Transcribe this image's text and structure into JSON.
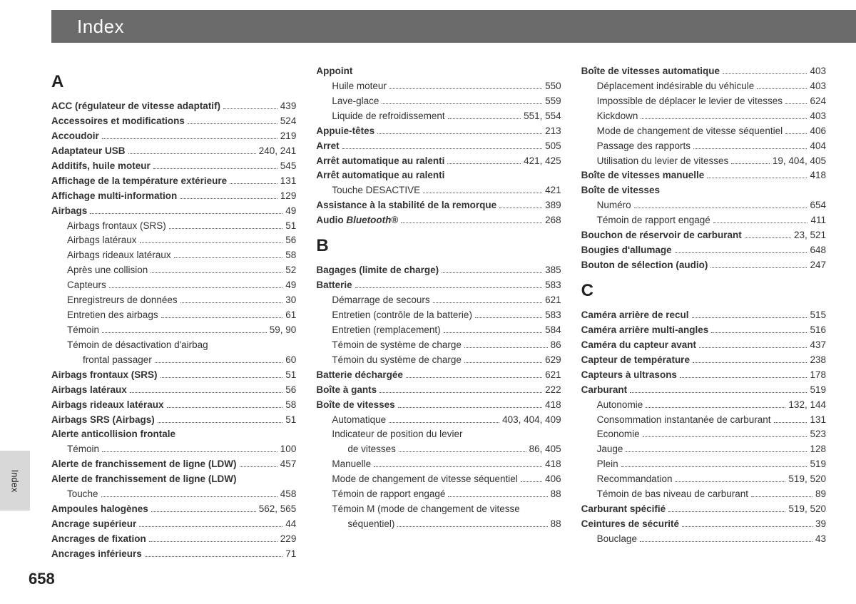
{
  "header": {
    "title": "Index"
  },
  "side_tab": "Index",
  "page_number": "658",
  "columns": [
    {
      "sections": [
        {
          "letter": "A",
          "entries": [
            {
              "lvl": 1,
              "bold": true,
              "label": "ACC (régulateur de vitesse adaptatif)",
              "pages": "439"
            },
            {
              "lvl": 1,
              "bold": true,
              "label": "Accessoires et modifications",
              "pages": "524"
            },
            {
              "lvl": 1,
              "bold": true,
              "label": "Accoudoir",
              "pages": "219"
            },
            {
              "lvl": 1,
              "bold": true,
              "label": "Adaptateur USB",
              "pages": "240, 241"
            },
            {
              "lvl": 1,
              "bold": true,
              "label": "Additifs, huile moteur",
              "pages": "545"
            },
            {
              "lvl": 1,
              "bold": true,
              "label": "Affichage de la température extérieure",
              "pages": "131"
            },
            {
              "lvl": 1,
              "bold": true,
              "label": "Affichage multi-information",
              "pages": "129"
            },
            {
              "lvl": 1,
              "bold": true,
              "label": "Airbags",
              "pages": "49"
            },
            {
              "lvl": 2,
              "bold": false,
              "label": "Airbags frontaux (SRS)",
              "pages": "51"
            },
            {
              "lvl": 2,
              "bold": false,
              "label": "Airbags latéraux",
              "pages": "56"
            },
            {
              "lvl": 2,
              "bold": false,
              "label": "Airbags rideaux latéraux",
              "pages": "58"
            },
            {
              "lvl": 2,
              "bold": false,
              "label": "Après une collision",
              "pages": "52"
            },
            {
              "lvl": 2,
              "bold": false,
              "label": "Capteurs",
              "pages": "49"
            },
            {
              "lvl": 2,
              "bold": false,
              "label": "Enregistreurs de données",
              "pages": "30"
            },
            {
              "lvl": 2,
              "bold": false,
              "label": "Entretien des airbags",
              "pages": "61"
            },
            {
              "lvl": 2,
              "bold": false,
              "label": "Témoin",
              "pages": "59, 90"
            },
            {
              "lvl": 2,
              "bold": false,
              "label": "Témoin de désactivation d'airbag",
              "pages": "",
              "nopage": true
            },
            {
              "lvl": 3,
              "bold": false,
              "label": "frontal passager",
              "pages": "60"
            },
            {
              "lvl": 1,
              "bold": true,
              "label": "Airbags frontaux (SRS)",
              "pages": "51"
            },
            {
              "lvl": 1,
              "bold": true,
              "label": "Airbags latéraux",
              "pages": "56"
            },
            {
              "lvl": 1,
              "bold": true,
              "label": "Airbags rideaux latéraux",
              "pages": "58"
            },
            {
              "lvl": 1,
              "bold": true,
              "label": "Airbags SRS (Airbags)",
              "pages": "51"
            },
            {
              "lvl": 1,
              "bold": true,
              "label": "Alerte anticollision frontale",
              "pages": "",
              "nopage": true
            },
            {
              "lvl": 2,
              "bold": false,
              "label": "Témoin",
              "pages": "100"
            },
            {
              "lvl": 1,
              "bold": true,
              "label": "Alerte de franchissement de ligne (LDW)",
              "pages": "457"
            },
            {
              "lvl": 1,
              "bold": true,
              "label": "Alerte de franchissement de ligne (LDW)",
              "pages": "",
              "nopage": true
            },
            {
              "lvl": 2,
              "bold": false,
              "label": "Touche",
              "pages": "458"
            },
            {
              "lvl": 1,
              "bold": true,
              "label": "Ampoules halogènes",
              "pages": "562, 565"
            },
            {
              "lvl": 1,
              "bold": true,
              "label": "Ancrage supérieur",
              "pages": "44"
            },
            {
              "lvl": 1,
              "bold": true,
              "label": "Ancrages de fixation",
              "pages": "229"
            },
            {
              "lvl": 1,
              "bold": true,
              "label": "Ancrages inférieurs",
              "pages": "71"
            }
          ]
        }
      ]
    },
    {
      "sections": [
        {
          "letter": "",
          "entries": [
            {
              "lvl": 1,
              "bold": true,
              "label": "Appoint",
              "pages": "",
              "nopage": true
            },
            {
              "lvl": 2,
              "bold": false,
              "label": "Huile moteur",
              "pages": "550"
            },
            {
              "lvl": 2,
              "bold": false,
              "label": "Lave-glace",
              "pages": "559"
            },
            {
              "lvl": 2,
              "bold": false,
              "label": "Liquide de refroidissement",
              "pages": "551, 554"
            },
            {
              "lvl": 1,
              "bold": true,
              "label": "Appuie-têtes",
              "pages": "213"
            },
            {
              "lvl": 1,
              "bold": true,
              "label": "Arret",
              "pages": "505"
            },
            {
              "lvl": 1,
              "bold": true,
              "label": "Arrêt automatique au ralenti",
              "pages": "421, 425"
            },
            {
              "lvl": 1,
              "bold": true,
              "label": "Arrêt automatique au ralenti",
              "pages": "",
              "nopage": true
            },
            {
              "lvl": 2,
              "bold": false,
              "label": "Touche DESACTIVE",
              "pages": "421"
            },
            {
              "lvl": 1,
              "bold": true,
              "label": "Assistance à la stabilité de la remorque",
              "pages": "389"
            },
            {
              "lvl": 1,
              "bold": true,
              "label_html": "Audio <span class=\"italic\">Bluetooth</span>®",
              "pages": "268"
            }
          ]
        },
        {
          "letter": "B",
          "entries": [
            {
              "lvl": 1,
              "bold": true,
              "label": "Bagages (limite de charge)",
              "pages": "385"
            },
            {
              "lvl": 1,
              "bold": true,
              "label": "Batterie",
              "pages": "583"
            },
            {
              "lvl": 2,
              "bold": false,
              "label": "Démarrage de secours",
              "pages": "621"
            },
            {
              "lvl": 2,
              "bold": false,
              "label": "Entretien (contrôle de la batterie)",
              "pages": "583"
            },
            {
              "lvl": 2,
              "bold": false,
              "label": "Entretien (remplacement)",
              "pages": "584"
            },
            {
              "lvl": 2,
              "bold": false,
              "label": "Témoin de système de charge",
              "pages": "86"
            },
            {
              "lvl": 2,
              "bold": false,
              "label": "Témoin du système de charge",
              "pages": "629"
            },
            {
              "lvl": 1,
              "bold": true,
              "label": "Batterie déchargée",
              "pages": "621"
            },
            {
              "lvl": 1,
              "bold": true,
              "label": "Boîte à gants",
              "pages": "222"
            },
            {
              "lvl": 1,
              "bold": true,
              "label": "Boîte de vitesses",
              "pages": "418"
            },
            {
              "lvl": 2,
              "bold": false,
              "label": "Automatique",
              "pages": "403, 404, 409"
            },
            {
              "lvl": 2,
              "bold": false,
              "label": "Indicateur de position du levier",
              "pages": "",
              "nopage": true
            },
            {
              "lvl": 3,
              "bold": false,
              "label": "de vitesses",
              "pages": "86, 405"
            },
            {
              "lvl": 2,
              "bold": false,
              "label": "Manuelle",
              "pages": "418"
            },
            {
              "lvl": 2,
              "bold": false,
              "label": "Mode de changement de vitesse séquentiel",
              "pages": "406"
            },
            {
              "lvl": 2,
              "bold": false,
              "label": "Témoin de rapport engagé",
              "pages": "88"
            },
            {
              "lvl": 2,
              "bold": false,
              "label": "Témoin M (mode de changement de vitesse",
              "pages": "",
              "nopage": true
            },
            {
              "lvl": 3,
              "bold": false,
              "label": "séquentiel)",
              "pages": "88"
            }
          ]
        }
      ]
    },
    {
      "sections": [
        {
          "letter": "",
          "entries": [
            {
              "lvl": 1,
              "bold": true,
              "label": "Boîte de vitesses automatique",
              "pages": "403"
            },
            {
              "lvl": 2,
              "bold": false,
              "label": "Déplacement indésirable du véhicule",
              "pages": "403"
            },
            {
              "lvl": 2,
              "bold": false,
              "label": "Impossible de déplacer le levier de vitesses",
              "pages": "624"
            },
            {
              "lvl": 2,
              "bold": false,
              "label": "Kickdown",
              "pages": "403"
            },
            {
              "lvl": 2,
              "bold": false,
              "label": "Mode de changement de vitesse séquentiel",
              "pages": "406"
            },
            {
              "lvl": 2,
              "bold": false,
              "label": "Passage des rapports",
              "pages": "404"
            },
            {
              "lvl": 2,
              "bold": false,
              "label": "Utilisation du levier de vitesses",
              "pages": "19, 404, 405"
            },
            {
              "lvl": 1,
              "bold": true,
              "label": "Boîte de vitesses manuelle",
              "pages": "418"
            },
            {
              "lvl": 1,
              "bold": true,
              "label": "Boîte de vitesses",
              "pages": "",
              "nopage": true
            },
            {
              "lvl": 2,
              "bold": false,
              "label": "Numéro",
              "pages": "654"
            },
            {
              "lvl": 2,
              "bold": false,
              "label": "Témoin de rapport engagé",
              "pages": "411"
            },
            {
              "lvl": 1,
              "bold": true,
              "label": "Bouchon de réservoir de carburant",
              "pages": "23, 521"
            },
            {
              "lvl": 1,
              "bold": true,
              "label": "Bougies d'allumage",
              "pages": "648"
            },
            {
              "lvl": 1,
              "bold": true,
              "label": "Bouton de sélection (audio)",
              "pages": "247"
            }
          ]
        },
        {
          "letter": "C",
          "entries": [
            {
              "lvl": 1,
              "bold": true,
              "label": "Caméra arrière de recul",
              "pages": "515"
            },
            {
              "lvl": 1,
              "bold": true,
              "label": "Caméra arrière multi-angles",
              "pages": "516"
            },
            {
              "lvl": 1,
              "bold": true,
              "label": "Caméra du capteur avant",
              "pages": "437"
            },
            {
              "lvl": 1,
              "bold": true,
              "label": "Capteur de température",
              "pages": "238"
            },
            {
              "lvl": 1,
              "bold": true,
              "label": "Capteurs à ultrasons",
              "pages": "178"
            },
            {
              "lvl": 1,
              "bold": true,
              "label": "Carburant",
              "pages": "519"
            },
            {
              "lvl": 2,
              "bold": false,
              "label": "Autonomie",
              "pages": "132, 144"
            },
            {
              "lvl": 2,
              "bold": false,
              "label": "Consommation instantanée de carburant",
              "pages": "131"
            },
            {
              "lvl": 2,
              "bold": false,
              "label": "Economie",
              "pages": "523"
            },
            {
              "lvl": 2,
              "bold": false,
              "label": "Jauge",
              "pages": "128"
            },
            {
              "lvl": 2,
              "bold": false,
              "label": "Plein",
              "pages": "519"
            },
            {
              "lvl": 2,
              "bold": false,
              "label": "Recommandation",
              "pages": "519, 520"
            },
            {
              "lvl": 2,
              "bold": false,
              "label": "Témoin de bas niveau de carburant",
              "pages": "89"
            },
            {
              "lvl": 1,
              "bold": true,
              "label": "Carburant spécifié",
              "pages": "519, 520"
            },
            {
              "lvl": 1,
              "bold": true,
              "label": "Ceintures de sécurité",
              "pages": "39"
            },
            {
              "lvl": 2,
              "bold": false,
              "label": "Bouclage",
              "pages": "43"
            }
          ]
        }
      ]
    }
  ]
}
